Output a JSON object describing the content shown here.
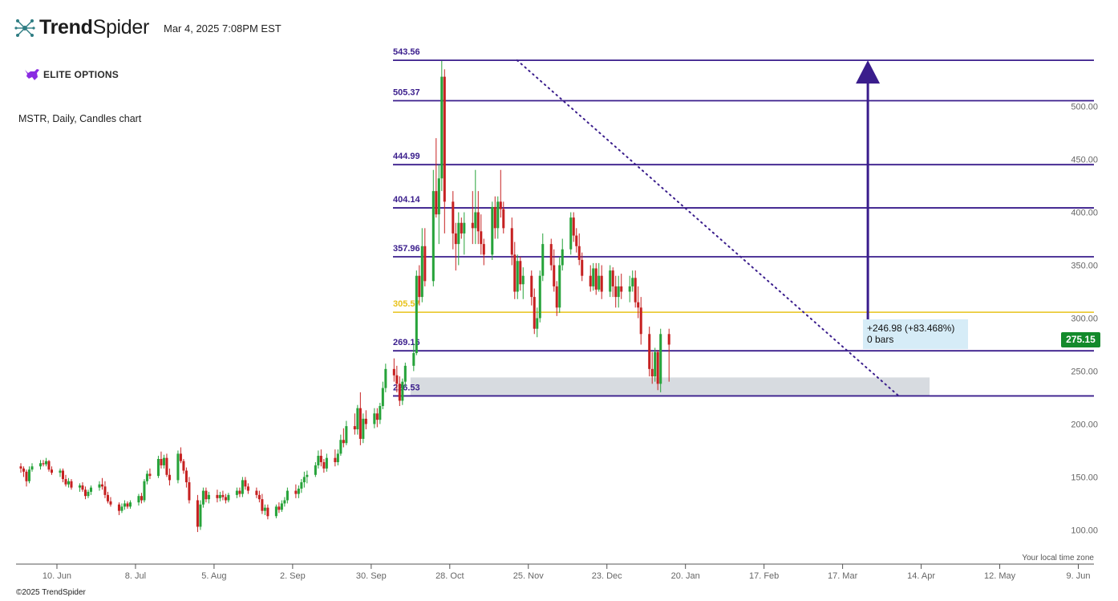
{
  "header": {
    "brand_first": "Trend",
    "brand_second": "Spider",
    "datetime": "Mar 4, 2025 7:08PM EST",
    "partner": "ELITE OPTIONS",
    "symbol_line": "MSTR, Daily, Candles chart"
  },
  "footer": {
    "timezone": "Your local time zone",
    "copyright": "©2025 TrendSpider"
  },
  "measure": {
    "change": "+246.98 (+83.468%)",
    "bars": "0 bars"
  },
  "colors": {
    "level": "#3a1d8c",
    "accent_level": "#e8c21a",
    "up": "#26a33a",
    "down": "#c62121",
    "zone": "#d7dbe0",
    "price_tag": "#138a2b"
  },
  "chart_data": {
    "type": "candlestick",
    "ticker": "MSTR",
    "timeframe": "Daily",
    "last_price": "275.15",
    "y_ticks": [
      "100.00",
      "150.00",
      "200.00",
      "250.00",
      "300.00",
      "350.00",
      "400.00",
      "450.00",
      "500.00"
    ],
    "y_range": [
      70,
      555
    ],
    "x_range": [
      "2024-05-27",
      "2025-06-14"
    ],
    "x_ticks": [
      {
        "label": "10. Jun",
        "date": "2024-06-10"
      },
      {
        "label": "8. Jul",
        "date": "2024-07-08"
      },
      {
        "label": "5. Aug",
        "date": "2024-08-05"
      },
      {
        "label": "2. Sep",
        "date": "2024-09-02"
      },
      {
        "label": "30. Sep",
        "date": "2024-09-30"
      },
      {
        "label": "28. Oct",
        "date": "2024-10-28"
      },
      {
        "label": "25. Nov",
        "date": "2024-11-25"
      },
      {
        "label": "23. Dec",
        "date": "2024-12-23"
      },
      {
        "label": "20. Jan",
        "date": "2025-01-20"
      },
      {
        "label": "17. Feb",
        "date": "2025-02-17"
      },
      {
        "label": "17. Mar",
        "date": "2025-03-17"
      },
      {
        "label": "14. Apr",
        "date": "2025-04-14"
      },
      {
        "label": "12. May",
        "date": "2025-05-12"
      },
      {
        "label": "9. Jun",
        "date": "2025-06-09"
      }
    ],
    "levels": [
      {
        "label": "543.56",
        "value": 543.56,
        "accent": false
      },
      {
        "label": "505.37",
        "value": 505.37,
        "accent": false
      },
      {
        "label": "444.99",
        "value": 444.99,
        "accent": false
      },
      {
        "label": "404.14",
        "value": 404.14,
        "accent": false
      },
      {
        "label": "357.96",
        "value": 357.96,
        "accent": false
      },
      {
        "label": "305.57",
        "value": 305.57,
        "accent": true
      },
      {
        "label": "269.16",
        "value": 269.16,
        "accent": false
      },
      {
        "label": "226.53",
        "value": 226.53,
        "accent": false
      }
    ],
    "zone": {
      "from": 226.53,
      "to": 244,
      "start": "2024-10-14",
      "end": "2025-04-17"
    },
    "trendline": {
      "start": {
        "date": "2024-11-21",
        "value": 543.56
      },
      "end": {
        "date": "2025-04-06",
        "value": 226.53
      }
    },
    "measure_arrow": {
      "date": "2025-03-26",
      "from": 296.5,
      "to": 543.56
    },
    "candles": [
      [
        160,
        163,
        154,
        158
      ],
      [
        158,
        160,
        150,
        155
      ],
      [
        155,
        157,
        141,
        146
      ],
      [
        146,
        160,
        144,
        157
      ],
      [
        157,
        163,
        155,
        160
      ],
      [
        160,
        166,
        157,
        163
      ],
      [
        163,
        166,
        160,
        162
      ],
      [
        162,
        168,
        160,
        165
      ],
      [
        165,
        166,
        155,
        157
      ],
      [
        157,
        160,
        152,
        154
      ],
      [
        154,
        158,
        150,
        156
      ],
      [
        156,
        158,
        145,
        148
      ],
      [
        148,
        152,
        141,
        143
      ],
      [
        143,
        149,
        140,
        146
      ],
      [
        146,
        148,
        138,
        140
      ],
      [
        140,
        144,
        136,
        142
      ],
      [
        142,
        145,
        136,
        138
      ],
      [
        138,
        141,
        129,
        132
      ],
      [
        132,
        138,
        130,
        136
      ],
      [
        136,
        142,
        133,
        140
      ],
      [
        140,
        146,
        137,
        143
      ],
      [
        143,
        149,
        138,
        141
      ],
      [
        141,
        146,
        130,
        133
      ],
      [
        133,
        136,
        125,
        127
      ],
      [
        127,
        131,
        122,
        124
      ],
      [
        124,
        126,
        114,
        118
      ],
      [
        118,
        125,
        116,
        122
      ],
      [
        122,
        128,
        119,
        125
      ],
      [
        125,
        127,
        120,
        122
      ],
      [
        122,
        128,
        120,
        126
      ],
      [
        126,
        134,
        123,
        132
      ],
      [
        132,
        135,
        125,
        128
      ],
      [
        128,
        148,
        126,
        146
      ],
      [
        146,
        156,
        143,
        153
      ],
      [
        153,
        158,
        148,
        151
      ],
      [
        151,
        170,
        149,
        167
      ],
      [
        167,
        174,
        158,
        161
      ],
      [
        161,
        171,
        158,
        168
      ],
      [
        168,
        172,
        150,
        152
      ],
      [
        152,
        158,
        142,
        147
      ],
      [
        147,
        175,
        144,
        172
      ],
      [
        172,
        178,
        163,
        165
      ],
      [
        165,
        167,
        153,
        156
      ],
      [
        156,
        159,
        140,
        145
      ],
      [
        145,
        150,
        125,
        128
      ],
      [
        128,
        133,
        98,
        103
      ],
      [
        103,
        128,
        100,
        124
      ],
      [
        124,
        140,
        121,
        137
      ],
      [
        137,
        140,
        126,
        129
      ],
      [
        129,
        136,
        125,
        133
      ],
      [
        133,
        138,
        126,
        130
      ],
      [
        130,
        136,
        127,
        133
      ],
      [
        133,
        137,
        128,
        131
      ],
      [
        131,
        134,
        125,
        128
      ],
      [
        128,
        135,
        126,
        133
      ],
      [
        133,
        140,
        130,
        137
      ],
      [
        137,
        140,
        131,
        134
      ],
      [
        134,
        150,
        131,
        147
      ],
      [
        147,
        150,
        138,
        141
      ],
      [
        141,
        144,
        134,
        137
      ],
      [
        137,
        140,
        130,
        133
      ],
      [
        133,
        137,
        126,
        129
      ],
      [
        129,
        134,
        115,
        118
      ],
      [
        118,
        124,
        114,
        121
      ],
      [
        121,
        124,
        110,
        113
      ],
      [
        113,
        124,
        111,
        122
      ],
      [
        122,
        126,
        116,
        119
      ],
      [
        119,
        128,
        117,
        125
      ],
      [
        125,
        131,
        122,
        128
      ],
      [
        128,
        140,
        125,
        137
      ],
      [
        137,
        143,
        130,
        134
      ],
      [
        134,
        142,
        130,
        139
      ],
      [
        139,
        148,
        135,
        145
      ],
      [
        145,
        155,
        140,
        150
      ],
      [
        150,
        156,
        144,
        152
      ],
      [
        152,
        164,
        150,
        161
      ],
      [
        161,
        175,
        158,
        170
      ],
      [
        170,
        176,
        160,
        164
      ],
      [
        164,
        167,
        154,
        158
      ],
      [
        158,
        172,
        155,
        168
      ],
      [
        168,
        176,
        160,
        164
      ],
      [
        164,
        176,
        161,
        172
      ],
      [
        172,
        190,
        170,
        185
      ],
      [
        185,
        196,
        178,
        182
      ],
      [
        182,
        203,
        180,
        198
      ],
      [
        198,
        210,
        190,
        195
      ],
      [
        195,
        218,
        190,
        215
      ],
      [
        215,
        230,
        180,
        186
      ],
      [
        186,
        210,
        182,
        205
      ],
      [
        205,
        213,
        195,
        200
      ],
      [
        200,
        215,
        196,
        210
      ],
      [
        210,
        215,
        197,
        204
      ],
      [
        204,
        220,
        200,
        217
      ],
      [
        217,
        240,
        214,
        234
      ],
      [
        234,
        257,
        230,
        252
      ],
      [
        252,
        262,
        240,
        246
      ],
      [
        246,
        255,
        230,
        238
      ],
      [
        238,
        245,
        217,
        222
      ],
      [
        222,
        243,
        218,
        240
      ],
      [
        240,
        258,
        235,
        255
      ],
      [
        255,
        276,
        250,
        267
      ],
      [
        267,
        345,
        265,
        340
      ],
      [
        340,
        350,
        312,
        320
      ],
      [
        320,
        385,
        315,
        368
      ],
      [
        368,
        385,
        330,
        335
      ],
      [
        335,
        440,
        330,
        420
      ],
      [
        420,
        470,
        395,
        398
      ],
      [
        398,
        445,
        370,
        432
      ],
      [
        432,
        543,
        420,
        528
      ],
      [
        528,
        535,
        380,
        410
      ],
      [
        410,
        420,
        365,
        380
      ],
      [
        380,
        390,
        345,
        370
      ],
      [
        370,
        400,
        350,
        390
      ],
      [
        390,
        395,
        375,
        380
      ],
      [
        380,
        400,
        360,
        390
      ],
      [
        390,
        420,
        370,
        385
      ],
      [
        385,
        440,
        370,
        400
      ],
      [
        400,
        420,
        370,
        382
      ],
      [
        382,
        398,
        360,
        370
      ],
      [
        370,
        375,
        350,
        360
      ],
      [
        360,
        410,
        355,
        405
      ],
      [
        405,
        415,
        375,
        385
      ],
      [
        385,
        415,
        375,
        410
      ],
      [
        410,
        440,
        395,
        403
      ],
      [
        403,
        410,
        380,
        385
      ],
      [
        385,
        395,
        350,
        360
      ],
      [
        360,
        372,
        318,
        325
      ],
      [
        325,
        360,
        318,
        354
      ],
      [
        354,
        358,
        326,
        332
      ],
      [
        332,
        348,
        318,
        340
      ],
      [
        340,
        345,
        312,
        320
      ],
      [
        320,
        328,
        285,
        290
      ],
      [
        290,
        310,
        282,
        300
      ],
      [
        300,
        345,
        296,
        340
      ],
      [
        340,
        380,
        335,
        370
      ],
      [
        370,
        375,
        345,
        350
      ],
      [
        350,
        365,
        325,
        330
      ],
      [
        330,
        335,
        302,
        310
      ],
      [
        310,
        358,
        305,
        350
      ],
      [
        350,
        375,
        345,
        365
      ],
      [
        365,
        400,
        360,
        395
      ],
      [
        395,
        400,
        372,
        378
      ],
      [
        378,
        385,
        362,
        368
      ],
      [
        368,
        380,
        350,
        355
      ],
      [
        355,
        362,
        335,
        340
      ],
      [
        340,
        350,
        325,
        330
      ],
      [
        330,
        352,
        326,
        347
      ],
      [
        347,
        352,
        322,
        327
      ],
      [
        327,
        352,
        325,
        340
      ],
      [
        340,
        350,
        318,
        325
      ],
      [
        325,
        350,
        320,
        345
      ],
      [
        345,
        348,
        320,
        330
      ],
      [
        330,
        340,
        310,
        320
      ],
      [
        320,
        340,
        310,
        330
      ],
      [
        330,
        342,
        318,
        325
      ],
      [
        325,
        340,
        315,
        330
      ],
      [
        330,
        345,
        325,
        338
      ],
      [
        338,
        345,
        310,
        315
      ],
      [
        315,
        330,
        300,
        310
      ],
      [
        310,
        320,
        275,
        285
      ],
      [
        285,
        292,
        245,
        252
      ],
      [
        252,
        268,
        238,
        245
      ],
      [
        245,
        272,
        240,
        268
      ],
      [
        268,
        270,
        232,
        238
      ],
      [
        238,
        290,
        230,
        285
      ],
      [
        285,
        290,
        240,
        275
      ]
    ]
  }
}
